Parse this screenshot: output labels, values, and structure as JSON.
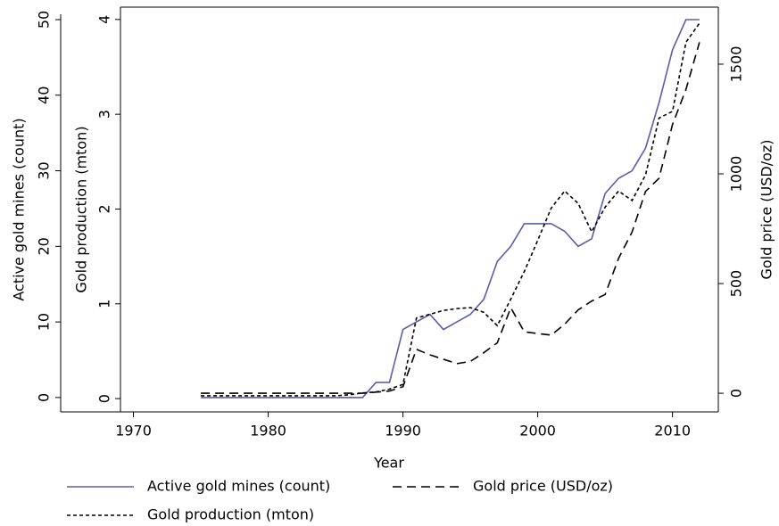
{
  "chart_data": {
    "type": "line",
    "xlabel": "Year",
    "ylabel": "Active gold mines (count)",
    "y2label": "Gold production (mton)",
    "y3label": "Gold price (USD/oz)",
    "x": [
      1975,
      1976,
      1977,
      1978,
      1979,
      1980,
      1981,
      1982,
      1983,
      1984,
      1985,
      1986,
      1987,
      1988,
      1989,
      1990,
      1991,
      1992,
      1993,
      1994,
      1995,
      1996,
      1997,
      1998,
      1999,
      2000,
      2001,
      2002,
      2003,
      2004,
      2005,
      2006,
      2007,
      2008,
      2009,
      2010,
      2011,
      2012
    ],
    "xlim": [
      1964.6,
      2013.4
    ],
    "xticks": [
      1970,
      1980,
      1990,
      2000,
      2010
    ],
    "ylim": [
      -1.9,
      51.65
    ],
    "yticks": [
      0,
      10,
      20,
      30,
      40,
      50
    ],
    "y2lim": [
      -0.14,
      4.13
    ],
    "y2ticks": [
      0,
      1,
      2,
      3,
      4
    ],
    "y3lim": [
      -85,
      1760
    ],
    "y3ticks": [
      0,
      500,
      1000,
      1500
    ],
    "grid": false,
    "series": [
      {
        "name": "Active gold mines (count)",
        "color": "#5b5ea6",
        "linestyle": "solid",
        "axis": "y",
        "values": [
          0,
          0,
          0,
          0,
          0,
          0,
          0,
          0,
          0,
          0,
          0,
          0,
          0,
          2,
          2,
          9,
          10,
          11,
          9,
          10,
          11,
          13,
          18,
          20,
          23,
          23,
          23,
          22,
          20,
          21,
          27,
          29,
          30,
          33,
          39,
          46,
          50,
          50
        ]
      },
      {
        "name": "Gold price (USD/oz)",
        "color": "#000000",
        "linestyle": "dashed",
        "axis": "y3",
        "values": [
          0,
          0,
          0,
          0,
          0,
          0,
          0,
          0,
          0,
          0,
          0,
          0,
          0,
          5,
          10,
          30,
          200,
          175,
          155,
          135,
          145,
          185,
          230,
          390,
          280,
          272,
          265,
          315,
          380,
          420,
          450,
          615,
          735,
          920,
          980,
          1225,
          1385,
          1600
        ]
      },
      {
        "name": "Gold production (mton)",
        "color": "#000000",
        "linestyle": "dotted",
        "axis": "y2",
        "values": [
          0.03,
          0.03,
          0.03,
          0.03,
          0.03,
          0.03,
          0.03,
          0.03,
          0.03,
          0.03,
          0.03,
          0.04,
          0.06,
          0.07,
          0.1,
          0.15,
          0.85,
          0.89,
          0.93,
          0.95,
          0.96,
          0.91,
          0.77,
          1.05,
          1.34,
          1.67,
          2.01,
          2.19,
          2.06,
          1.76,
          2.02,
          2.19,
          2.09,
          2.36,
          2.96,
          3.03,
          3.76,
          3.96
        ]
      }
    ]
  }
}
